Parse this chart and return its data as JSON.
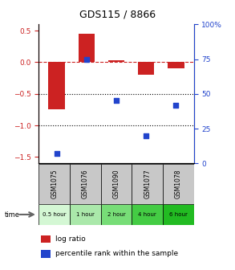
{
  "title": "GDS115 / 8866",
  "categories": [
    "GSM1075",
    "GSM1076",
    "GSM1090",
    "GSM1077",
    "GSM1078"
  ],
  "time_labels": [
    "0.5 hour",
    "1 hour",
    "2 hour",
    "4 hour",
    "6 hour"
  ],
  "log_ratio": [
    -0.75,
    0.45,
    0.03,
    -0.2,
    -0.1
  ],
  "percentile": [
    7,
    75,
    45,
    20,
    42
  ],
  "bar_color": "#cc2222",
  "dot_color": "#2244cc",
  "ylim_left": [
    -1.6,
    0.6
  ],
  "ylim_right": [
    0,
    100
  ],
  "yticks_left": [
    0.5,
    0,
    -0.5,
    -1.0,
    -1.5
  ],
  "yticks_right": [
    100,
    75,
    50,
    25,
    0
  ],
  "dotted_lines": [
    -0.5,
    -1.0
  ],
  "time_colors": [
    "#d4f7d4",
    "#aae8aa",
    "#77dd77",
    "#44cc44",
    "#22bb22"
  ],
  "gsm_bg": "#c8c8c8",
  "legend_log_ratio": "log ratio",
  "legend_percentile": "percentile rank within the sample",
  "time_label": "time",
  "title_fontsize": 9,
  "tick_fontsize": 6.5,
  "label_fontsize": 6,
  "legend_fontsize": 6.5
}
